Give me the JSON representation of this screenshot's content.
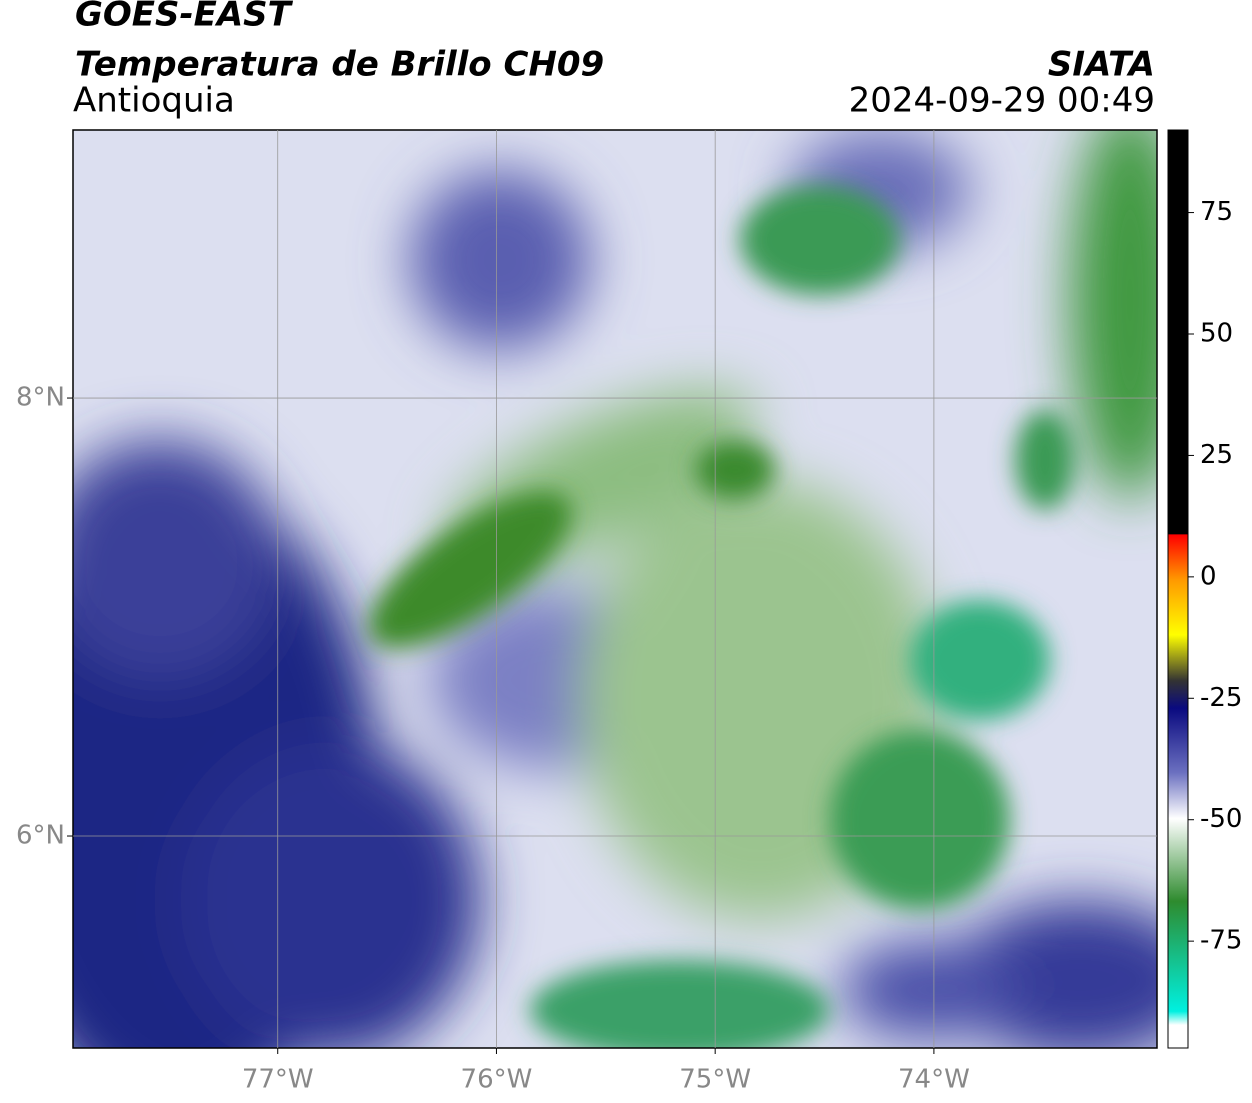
{
  "header": {
    "satellite": "GOES-EAST",
    "product": "Temperatura de Brillo CH09",
    "region": "Antioquia",
    "source": "SIATA",
    "datetime": "2024-09-29 00:49"
  },
  "map": {
    "xlim": [
      -77.936,
      -72.98
    ],
    "ylim": [
      5.032,
      9.224
    ],
    "xticks": [
      {
        "value": -77,
        "label": "77°W"
      },
      {
        "value": -76,
        "label": "76°W"
      },
      {
        "value": -75,
        "label": "75°W"
      },
      {
        "value": -74,
        "label": "74°W"
      }
    ],
    "yticks": [
      {
        "value": 8,
        "label": "8°N"
      },
      {
        "value": 6,
        "label": "6°N"
      }
    ],
    "grid": true
  },
  "colorbar": {
    "lim": [
      -97,
      92
    ],
    "ticks": [
      75,
      50,
      25,
      0,
      -25,
      -50,
      -75
    ]
  }
}
